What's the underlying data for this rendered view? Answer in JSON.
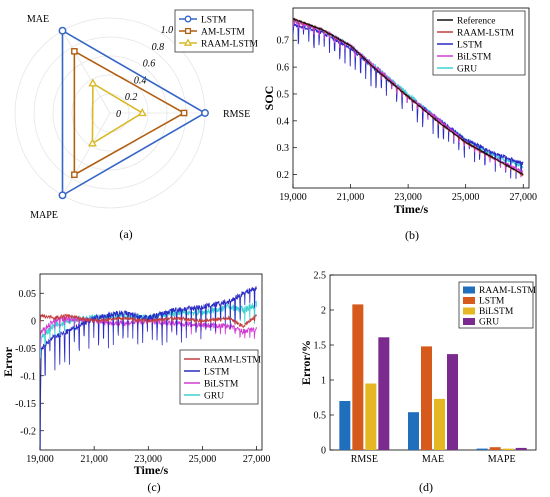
{
  "chart_data": [
    {
      "panel_label": "(a)",
      "type": "radar",
      "axes": [
        "MAE",
        "RMSE",
        "MAPE"
      ],
      "radial_ticks": [
        "0",
        "0.2",
        "0.4",
        "0.6",
        "0.8",
        "1.0"
      ],
      "rlim": [
        0,
        1.0
      ],
      "grid": true,
      "legend_position": "top-right",
      "series": [
        {
          "name": "LSTM",
          "values": [
            1.0,
            1.0,
            1.0
          ],
          "color": "#3566c6",
          "marker": "circle"
        },
        {
          "name": "AM-LSTM",
          "values": [
            0.75,
            0.78,
            0.75
          ],
          "color": "#b05f13",
          "marker": "square"
        },
        {
          "name": "RAAM-LSTM",
          "values": [
            0.36,
            0.34,
            0.37
          ],
          "color": "#d9b928",
          "marker": "triangle"
        }
      ]
    },
    {
      "panel_label": "(b)",
      "type": "line",
      "xlabel": "Time/s",
      "ylabel": "SOC",
      "xlim": [
        19000,
        27200
      ],
      "ylim": [
        0.15,
        0.82
      ],
      "xticks": [
        "19,000",
        "21,000",
        "23,000",
        "25,000",
        "27,000"
      ],
      "xtick_values": [
        19000,
        21000,
        23000,
        25000,
        27000
      ],
      "yticks": [
        "0.2",
        "0.3",
        "0.4",
        "0.5",
        "0.6",
        "0.7"
      ],
      "ytick_values": [
        0.2,
        0.3,
        0.4,
        0.5,
        0.6,
        0.7
      ],
      "legend_position": "top-right",
      "x": [
        19000,
        20000,
        21000,
        22000,
        23000,
        24000,
        25000,
        26000,
        27000
      ],
      "series": [
        {
          "name": "Reference",
          "color": "#111111",
          "values": [
            0.78,
            0.74,
            0.68,
            0.58,
            0.49,
            0.4,
            0.32,
            0.26,
            0.2
          ]
        },
        {
          "name": "RAAM-LSTM",
          "color": "#c43e3e",
          "values": [
            0.78,
            0.74,
            0.68,
            0.58,
            0.49,
            0.4,
            0.32,
            0.26,
            0.2
          ]
        },
        {
          "name": "LSTM",
          "color": "#2a2ac4",
          "values": [
            0.76,
            0.73,
            0.67,
            0.58,
            0.49,
            0.41,
            0.33,
            0.28,
            0.24
          ]
        },
        {
          "name": "BiLSTM",
          "color": "#d23cd2",
          "values": [
            0.77,
            0.74,
            0.68,
            0.59,
            0.49,
            0.41,
            0.32,
            0.26,
            0.21
          ]
        },
        {
          "name": "GRU",
          "color": "#3cd2d2",
          "values": [
            0.77,
            0.74,
            0.68,
            0.59,
            0.5,
            0.41,
            0.33,
            0.27,
            0.23
          ]
        }
      ]
    },
    {
      "panel_label": "(c)",
      "type": "line",
      "xlabel": "Time/s",
      "ylabel": "Error",
      "xlim": [
        19000,
        27200
      ],
      "ylim": [
        -0.235,
        0.085
      ],
      "xticks": [
        "19,000",
        "21,000",
        "23,000",
        "25,000",
        "27,000"
      ],
      "xtick_values": [
        19000,
        21000,
        23000,
        25000,
        27000
      ],
      "yticks": [
        "-0.2",
        "-0.15",
        "-0.1",
        "-0.05",
        "0",
        "0.05"
      ],
      "ytick_values": [
        -0.2,
        -0.15,
        -0.1,
        -0.05,
        0,
        0.05
      ],
      "legend_position": "bottom-right",
      "x": [
        19000,
        19050,
        19500,
        20000,
        21000,
        22000,
        23000,
        24000,
        25000,
        26000,
        26500,
        27000
      ],
      "series": [
        {
          "name": "RAAM-LSTM",
          "color": "#c43e3e",
          "values": [
            0,
            0.01,
            0.005,
            0.01,
            0.0,
            0.005,
            0.0,
            0.005,
            0.0,
            0.005,
            -0.01,
            0.01
          ]
        },
        {
          "name": "LSTM",
          "color": "#2a2ac4",
          "values": [
            -0.22,
            -0.05,
            -0.03,
            -0.02,
            0.005,
            0.015,
            0.005,
            0.02,
            0.025,
            0.035,
            0.05,
            0.06
          ]
        },
        {
          "name": "BiLSTM",
          "color": "#d23cd2",
          "values": [
            -0.04,
            -0.02,
            0.0,
            0.005,
            0.0,
            -0.005,
            0.0,
            -0.005,
            -0.008,
            -0.01,
            -0.02,
            -0.015
          ]
        },
        {
          "name": "GRU",
          "color": "#3cd2d2",
          "values": [
            -0.05,
            -0.03,
            -0.01,
            0.0,
            0.005,
            0.01,
            0.005,
            0.015,
            0.015,
            0.025,
            0.02,
            0.03
          ]
        }
      ]
    },
    {
      "panel_label": "(d)",
      "type": "bar",
      "ylabel": "Error/%",
      "ylim": [
        0,
        2.5
      ],
      "yticks": [
        "0",
        "0.5",
        "1",
        "1.5",
        "2",
        "2.5"
      ],
      "ytick_values": [
        0,
        0.5,
        1,
        1.5,
        2,
        2.5
      ],
      "categories": [
        "RMSE",
        "MAE",
        "MAPE"
      ],
      "legend_position": "top-right",
      "series": [
        {
          "name": "RAAM-LSTM",
          "color": "#1f6fbd",
          "values": [
            0.7,
            0.54,
            0.02
          ]
        },
        {
          "name": "LSTM",
          "color": "#d65a1c",
          "values": [
            2.08,
            1.48,
            0.04
          ]
        },
        {
          "name": "BiLSTM",
          "color": "#e5b722",
          "values": [
            0.95,
            0.73,
            0.02
          ]
        },
        {
          "name": "GRU",
          "color": "#7b2a8e",
          "values": [
            1.61,
            1.37,
            0.03
          ]
        }
      ]
    }
  ]
}
